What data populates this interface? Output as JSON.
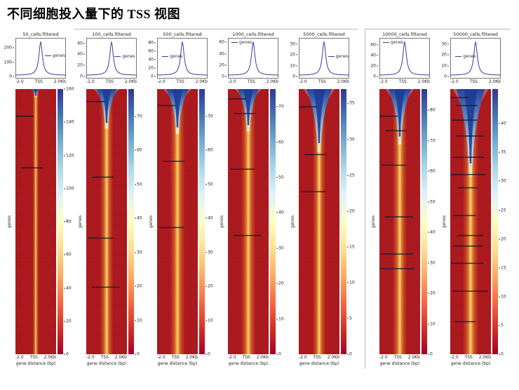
{
  "page_title": "不同细胞投入量下的 TSS 视图",
  "shared": {
    "legend_label": "genes",
    "heatmap_xlabel": "gene distance (bp)",
    "heatmap_ylabel": "genes"
  },
  "colors": {
    "profile_line": "#3a3a9c",
    "axis_text": "#222222",
    "heatmap_red": "#b01b20",
    "stripe_yellow": "#f8e27a",
    "stripe_orange": "#e2752c",
    "funnel_blue_dark": "#1c3c96",
    "funnel_blue_mid": "#5d8ec6",
    "funnel_halo": "#cfe2ee",
    "streak_dark": "#1d1b2e",
    "colorbar_gradient": [
      "#a50026",
      "#d73027",
      "#f46d43",
      "#fdae61",
      "#fee090",
      "#ffffbf",
      "#e0f3f8",
      "#abd9e9",
      "#74add1",
      "#4575b4",
      "#313695"
    ]
  },
  "chart_data": [
    {
      "name": "50_cells.filtered",
      "profile": {
        "type": "line",
        "series": "genes",
        "peak": 240,
        "ymax": 255,
        "yticks": [
          0,
          100,
          200
        ],
        "xticks": [
          "-2.0",
          "TSS",
          "2.0Kb"
        ],
        "legend_x": 0.58,
        "legend_y": 0.38
      },
      "heatmap": {
        "type": "heatmap",
        "xlabel": "gene distance (bp)",
        "ylabel": "genes",
        "xticks": [
          "-2.0",
          "TSS",
          "2.0Kb"
        ],
        "cbar_max": 160,
        "cbar_ticks": [
          0,
          20,
          40,
          60,
          80,
          100,
          120,
          140,
          160
        ],
        "funnel_depth": 0.03,
        "funnel_width": 0.18,
        "stripe_width": 0.05,
        "streaks": [
          0.1,
          0.295
        ]
      }
    },
    {
      "name": "100_cells.filtered",
      "profile": {
        "type": "line",
        "series": "genes",
        "peak": 62,
        "ymax": 66,
        "yticks": [
          0,
          20,
          40,
          60
        ],
        "xticks": [
          "-2.0",
          "TSS",
          "2.0Kb"
        ],
        "legend_x": 0.56,
        "legend_y": 0.4
      },
      "heatmap": {
        "type": "heatmap",
        "xlabel": "gene distance (bp)",
        "ylabel": "genes",
        "xticks": [
          "-2.0",
          "TSS",
          "2.0Kb"
        ],
        "cbar_max": 78,
        "cbar_ticks": [
          0,
          10,
          20,
          30,
          40,
          50,
          60,
          70
        ],
        "funnel_depth": 0.15,
        "funnel_width": 0.5,
        "stripe_width": 0.1,
        "streaks": [
          0.045,
          0.33,
          0.56,
          0.745
        ]
      }
    },
    {
      "name": "500_cells.filtered",
      "profile": {
        "type": "line",
        "series": "genes",
        "peak": 81,
        "ymax": 86,
        "yticks": [
          0,
          20,
          40,
          60,
          80
        ],
        "xticks": [
          "-2.0",
          "TSS",
          "2.0Kb"
        ],
        "legend_x": 0.1,
        "legend_y": 0.4
      },
      "heatmap": {
        "type": "heatmap",
        "xlabel": "gene distance (bp)",
        "ylabel": "genes",
        "xticks": [
          "-2.0",
          "TSS",
          "2.0Kb"
        ],
        "cbar_max": 78,
        "cbar_ticks": [
          0,
          10,
          20,
          30,
          40,
          50,
          60,
          70
        ],
        "funnel_depth": 0.17,
        "funnel_width": 0.55,
        "stripe_width": 0.11,
        "streaks": [
          0.06,
          0.27,
          0.52
        ]
      }
    },
    {
      "name": "1000_cells.filtered",
      "profile": {
        "type": "line",
        "series": "genes",
        "peak": 60,
        "ymax": 64,
        "yticks": [
          0,
          20,
          40,
          60
        ],
        "xticks": [
          "-2.0",
          "TSS",
          "2.0Kb"
        ],
        "legend_x": 0.07,
        "legend_y": 0.06
      },
      "heatmap": {
        "type": "heatmap",
        "xlabel": "gene distance (bp)",
        "ylabel": "genes",
        "xticks": [
          "-2.0",
          "TSS",
          "2.0Kb"
        ],
        "cbar_max": 75,
        "cbar_ticks": [
          0,
          10,
          20,
          30,
          40,
          50,
          60,
          70
        ],
        "funnel_depth": 0.16,
        "funnel_width": 0.52,
        "stripe_width": 0.11,
        "streaks": [
          0.035,
          0.09,
          0.3,
          0.55
        ]
      }
    },
    {
      "name": "5000_cells.filtered",
      "profile": {
        "type": "line",
        "series": "genes",
        "peak": 32,
        "ymax": 34,
        "yticks": [
          0,
          10,
          20,
          30
        ],
        "xticks": [
          "-2.0",
          "TSS",
          "2.0Kb"
        ],
        "legend_x": 0.58,
        "legend_y": 0.4
      },
      "heatmap": {
        "type": "heatmap",
        "xlabel": "gene distance (bp)",
        "ylabel": "genes",
        "xticks": [
          "-2.0",
          "TSS",
          "2.0Kb"
        ],
        "cbar_max": 37,
        "cbar_ticks": [
          0,
          5,
          10,
          15,
          20,
          25,
          30,
          35
        ],
        "funnel_depth": 0.24,
        "funnel_width": 0.62,
        "stripe_width": 0.1,
        "streaks": [
          0.065,
          0.245,
          0.385
        ]
      }
    },
    {
      "name": "10000_cells.filtered",
      "profile": {
        "type": "line",
        "series": "genes",
        "peak": 65,
        "ymax": 69,
        "yticks": [
          0,
          20,
          40,
          60
        ],
        "xticks": [
          "-2.0",
          "TSS",
          "2.0Kb"
        ],
        "legend_x": 0.07,
        "legend_y": 0.06
      },
      "heatmap": {
        "type": "heatmap",
        "xlabel": "gene distance (bp)",
        "ylabel": "genes",
        "xticks": [
          "-2.0",
          "TSS",
          "2.0Kb"
        ],
        "cbar_max": 87,
        "cbar_ticks": [
          0,
          10,
          20,
          30,
          40,
          50,
          60,
          70,
          80
        ],
        "funnel_depth": 0.21,
        "funnel_width": 0.56,
        "stripe_width": 0.11,
        "streaks": [
          0.1,
          0.155,
          0.285,
          0.48,
          0.62,
          0.675
        ]
      }
    },
    {
      "name": "50000_cells.filtered",
      "profile": {
        "type": "line",
        "series": "genes",
        "peak": 32,
        "ymax": 34,
        "yticks": [
          0,
          10,
          20,
          30
        ],
        "xticks": [
          "-2.0",
          "TSS",
          "2.0Kb"
        ],
        "legend_x": 0.1,
        "legend_y": 0.4
      },
      "heatmap": {
        "type": "heatmap",
        "xlabel": "gene distance (bp)",
        "ylabel": "genes",
        "xticks": [
          "-2.0",
          "TSS",
          "2.0Kb"
        ],
        "cbar_max": 46,
        "cbar_ticks": [
          0,
          5,
          10,
          15,
          20,
          25,
          30,
          35,
          40
        ],
        "funnel_depth": 0.33,
        "funnel_width": 0.7,
        "stripe_width": 0.12,
        "streaks": [
          0.03,
          0.06,
          0.115,
          0.175,
          0.255,
          0.32,
          0.37,
          0.475,
          0.55,
          0.59,
          0.655,
          0.76,
          0.875
        ]
      }
    }
  ]
}
